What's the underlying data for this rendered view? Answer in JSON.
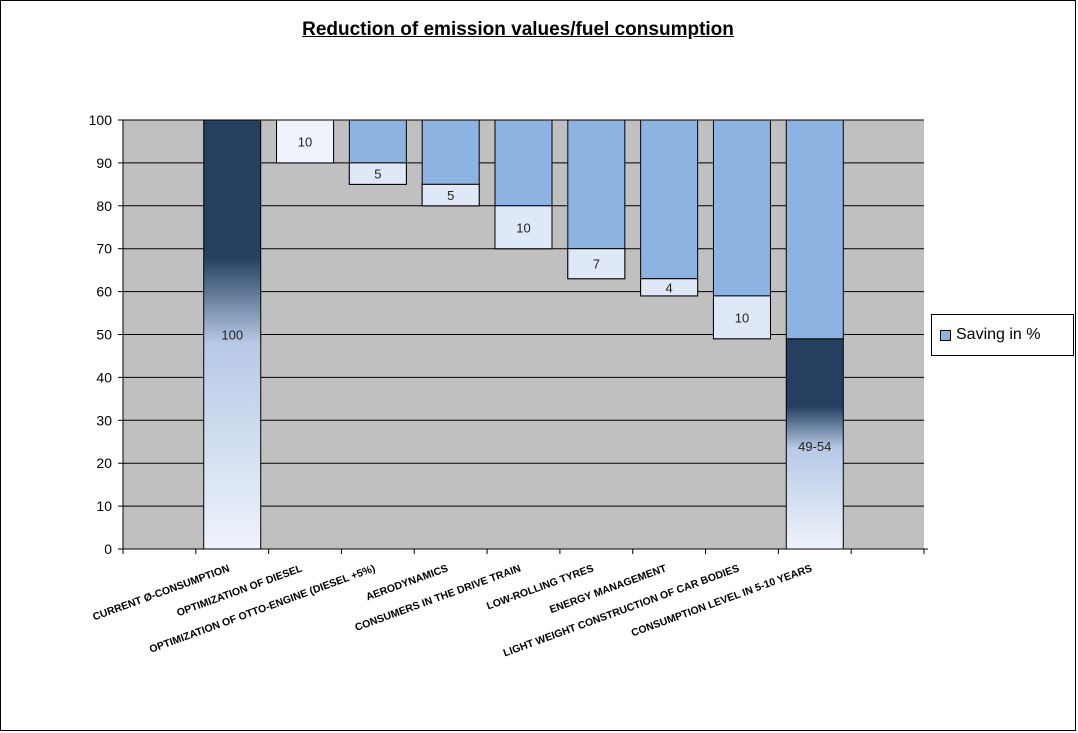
{
  "chart_data": {
    "type": "bar",
    "title": "Reduction of emission values/fuel consumption",
    "xlabel": "",
    "ylabel": "",
    "ylim": [
      0,
      100
    ],
    "yticks": [
      0,
      10,
      20,
      30,
      40,
      50,
      60,
      70,
      80,
      90,
      100
    ],
    "grid": true,
    "legend_position": "right",
    "colors": {
      "saving": "#8db3e2",
      "remaining_dark": "#243f60",
      "remaining_light": "#eef3fb",
      "plot_background": "#c0c0c0"
    },
    "categories": [
      "CURRENT Ø-CONSUMPTION",
      "OPTIMIZATION OF DIESEL",
      "OPTIMIZATION OF OTTO-ENGINE (DIESEL +5%)",
      "AERODYNAMICS",
      "CONSUMERS IN THE DRIVE TRAIN",
      "LOW-ROLLING TYRES",
      "ENERGY MANAGEMENT",
      "LIGHT WEIGHT CONSTRUCTION  OF CAR BODIES",
      "CONSUMPTION LEVEL IN 5-10 YEARS"
    ],
    "series": [
      {
        "name": "Saving in %",
        "values": [
          null,
          10,
          5,
          5,
          10,
          7,
          4,
          10,
          null
        ],
        "cumulative_top": [
          null,
          100,
          100,
          100,
          100,
          100,
          100,
          100,
          100
        ],
        "segment": [
          null,
          [
            90,
            100
          ],
          [
            85,
            90
          ],
          [
            80,
            85
          ],
          [
            70,
            80
          ],
          [
            63,
            70
          ],
          [
            59,
            63
          ],
          [
            49,
            59
          ],
          [
            49,
            100
          ]
        ]
      },
      {
        "name": "",
        "values": [
          100,
          null,
          null,
          null,
          null,
          null,
          null,
          null,
          49
        ],
        "range_label": [
          "100",
          null,
          null,
          null,
          null,
          null,
          null,
          null,
          "49-54"
        ]
      }
    ],
    "data_labels": [
      "100",
      "10",
      "5",
      "5",
      "10",
      "7",
      "4",
      "10",
      "49-54"
    ]
  },
  "legend": {
    "label": "Saving in %"
  }
}
